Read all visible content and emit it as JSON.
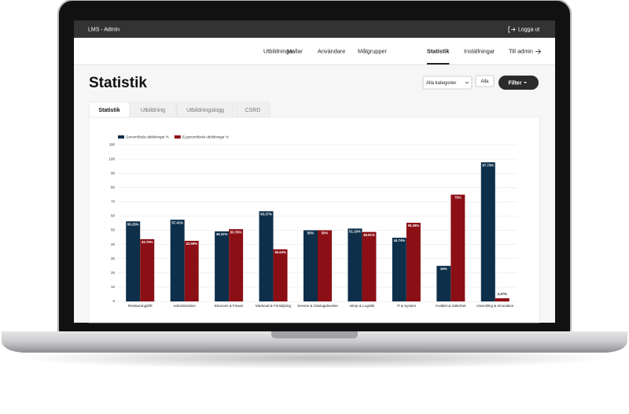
{
  "header": {
    "app_name": "LMS - Admin",
    "logout": "Logga ut"
  },
  "nav": [
    "Utbildningar",
    "Mallar",
    "Användare",
    "Målgrupper",
    "Statistik",
    "Inställningar",
    "Till admin"
  ],
  "page": {
    "title": "Statistik",
    "category_select": "Alla kategorier",
    "all_button": "Alla",
    "filter_button": "Filter"
  },
  "tabs": [
    "Statistik",
    "Utbildning",
    "Utbildningslogg",
    "CSRD"
  ],
  "chart_data": {
    "type": "bar",
    "categories": [
      "Restaurangdrift",
      "Administration",
      "Ekonomi & Finans",
      "Marknad & Försäljning",
      "Service & Gästupplevelse",
      "Inköp & Logistik",
      "IT & System",
      "Kvalitet & Säkerhet",
      "Utveckling & Innovation"
    ],
    "series": [
      {
        "name": "Genomförda utbildningar %",
        "color": "#0d2f4a",
        "values": [
          56.25,
          57.41,
          49.22,
          63.37,
          50,
          51.19,
          44.74,
          25,
          97.73
        ],
        "value_labels": [
          "56.25%",
          "57.41%",
          "49.22%",
          "63.37%",
          "50%",
          "51.19%",
          "44.74%",
          "25%",
          "97.73%"
        ]
      },
      {
        "name": "Ej genomförda utbildningar %",
        "color": "#8b0f14",
        "values": [
          43.75,
          42.59,
          50.78,
          36.63,
          50,
          48.81,
          55.26,
          75,
          2.27
        ],
        "value_labels": [
          "43.75%",
          "42.59%",
          "50.78%",
          "36.63%",
          "50%",
          "48.81%",
          "55.26%",
          "75%",
          "2.27%"
        ]
      }
    ],
    "ylim": [
      0,
      110
    ],
    "yticks": [
      0,
      10,
      20,
      30,
      40,
      50,
      60,
      70,
      80,
      90,
      100,
      110
    ],
    "grid": true
  }
}
